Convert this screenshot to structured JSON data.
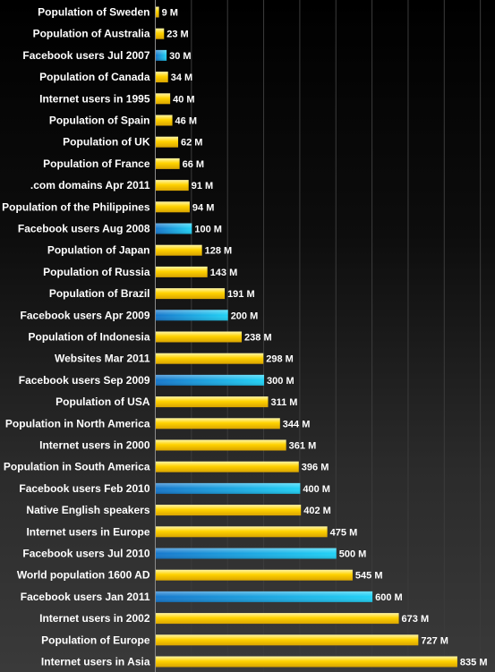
{
  "chart_data": {
    "type": "bar",
    "orientation": "horizontal",
    "categories": [
      "Population of Sweden",
      "Population of Australia",
      "Facebook users Jul 2007",
      "Population of Canada",
      "Internet users in 1995",
      "Population of Spain",
      "Population of UK",
      "Population of France",
      ".com domains Apr 2011",
      "Population of the Philippines",
      "Facebook users Aug 2008",
      "Population of Japan",
      "Population of Russia",
      "Population of Brazil",
      "Facebook users Apr 2009",
      "Population of Indonesia",
      "Websites Mar 2011",
      "Facebook users Sep 2009",
      "Population of USA",
      "Population in North America",
      "Internet users in 2000",
      "Population in South America",
      "Facebook users Feb 2010",
      "Native English speakers",
      "Internet users in Europe",
      "Facebook users Jul 2010",
      "World population 1600 AD",
      "Facebook users Jan 2011",
      "Internet users in 2002",
      "Population of Europe",
      "Internet users in Asia"
    ],
    "values": [
      9,
      23,
      30,
      34,
      40,
      46,
      62,
      66,
      91,
      94,
      100,
      128,
      143,
      191,
      200,
      238,
      298,
      300,
      311,
      344,
      361,
      396,
      400,
      402,
      475,
      500,
      545,
      600,
      673,
      727,
      835
    ],
    "value_labels": [
      "9 M",
      "23 M",
      "30 M",
      "34 M",
      "40 M",
      "46 M",
      "62 M",
      "66 M",
      "91 M",
      "94 M",
      "100 M",
      "128 M",
      "143 M",
      "191 M",
      "200 M",
      "238 M",
      "298 M",
      "300 M",
      "311 M",
      "344 M",
      "361 M",
      "396 M",
      "400 M",
      "402 M",
      "475 M",
      "500 M",
      "545 M",
      "600 M",
      "673 M",
      "727 M",
      "835 M"
    ],
    "highlight": [
      false,
      false,
      true,
      false,
      false,
      false,
      false,
      false,
      false,
      false,
      true,
      false,
      false,
      false,
      true,
      false,
      false,
      true,
      false,
      false,
      false,
      false,
      true,
      false,
      false,
      true,
      false,
      true,
      false,
      false,
      false
    ],
    "xlim": [
      0,
      900
    ],
    "grid": true,
    "colors": {
      "default_bar": "#ffd200",
      "highlight_bar": "#1ab8e8",
      "background_top": "#000000",
      "background_bottom": "#3a3a3a",
      "text": "#ffffff",
      "gridline": "#3c3c3c"
    }
  }
}
